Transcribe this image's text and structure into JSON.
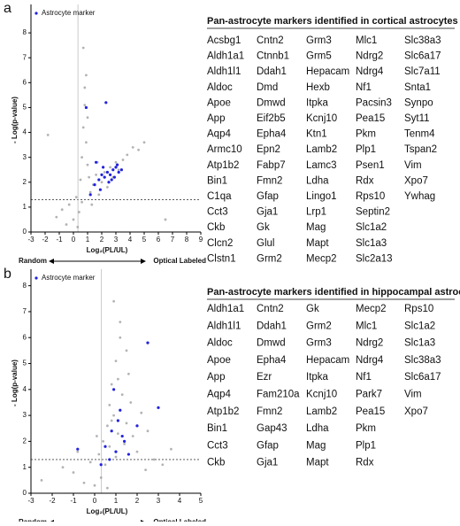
{
  "panel_labels": [
    "a",
    "b"
  ],
  "chart_data": [
    {
      "type": "scatter",
      "xlabel": "Log₂(PL/UL)",
      "ylabel": "- Log(p-value)",
      "x_direction_labels": [
        "Random",
        "Optical Labeled"
      ],
      "xlim": [
        -3,
        9
      ],
      "xticks": [
        -3,
        -2,
        -1,
        0,
        1,
        2,
        3,
        4,
        5,
        6,
        7,
        8,
        9
      ],
      "ylim": [
        0,
        9
      ],
      "yticks": [
        0,
        1,
        2,
        3,
        4,
        5,
        6,
        7,
        8
      ],
      "hline": 1.3,
      "vline": 0.32,
      "legend": "upper left",
      "series": [
        {
          "color": "#9a9a9a",
          "x": [
            -1.2,
            -0.8,
            -0.5,
            -0.3,
            0,
            0.2,
            0.4,
            0.5,
            0.6,
            0.7,
            0.8,
            0.9,
            1.0,
            1.1,
            1.2,
            1.4,
            1.6,
            1.8,
            2.0,
            2.2,
            2.4,
            2.6,
            2.8,
            3.0,
            3.2,
            3.5,
            3.8,
            4.2,
            4.6,
            5.0,
            0.3,
            0.6,
            0.9,
            1.3,
            1.7,
            0.7,
            0.8,
            1.0,
            6.5,
            -1.8
          ],
          "values": [
            0.6,
            0.9,
            0.3,
            1.1,
            0.5,
            1.4,
            0.8,
            2.1,
            3.0,
            4.2,
            5.1,
            3.6,
            2.7,
            2.2,
            1.6,
            1.9,
            2.3,
            1.5,
            2.0,
            2.4,
            1.8,
            2.6,
            2.2,
            2.8,
            2.5,
            2.9,
            3.1,
            3.4,
            3.3,
            3.6,
            0.2,
            1.2,
            6.3,
            1.1,
            2.8,
            7.4,
            5.8,
            4.6,
            0.5,
            3.9
          ]
        },
        {
          "name": "Astrocyte marker",
          "color": "#2222dd",
          "x": [
            1.5,
            1.8,
            2.0,
            2.2,
            2.4,
            2.6,
            2.8,
            3.0,
            3.2,
            2.5,
            1.9,
            2.1,
            2.9,
            3.1,
            1.2,
            0.9,
            1.6,
            2.7,
            3.4,
            2.3
          ],
          "values": [
            1.9,
            2.1,
            2.3,
            2.2,
            2.4,
            2.3,
            2.5,
            2.6,
            2.4,
            2.0,
            1.7,
            2.6,
            2.2,
            2.7,
            1.5,
            5.0,
            2.8,
            2.1,
            2.5,
            5.2
          ]
        }
      ]
    },
    {
      "type": "scatter",
      "xlabel": "Log₂(PL/UL)",
      "ylabel": "- Log(p-value)",
      "x_direction_labels": [
        "Random",
        "Optical Labeled"
      ],
      "xlim": [
        -3,
        5
      ],
      "xticks": [
        -3,
        -2,
        -1,
        0,
        1,
        2,
        3,
        4,
        5
      ],
      "ylim": [
        0,
        8.5
      ],
      "yticks": [
        0,
        1,
        2,
        3,
        4,
        5,
        6,
        7,
        8
      ],
      "hline": 1.3,
      "vline": 0.32,
      "legend": "upper left",
      "series": [
        {
          "color": "#9a9a9a",
          "x": [
            -2.5,
            -1.5,
            -1.0,
            -0.5,
            -0.2,
            0,
            0.2,
            0.4,
            0.5,
            0.6,
            0.7,
            0.8,
            0.9,
            1.0,
            1.1,
            1.2,
            1.3,
            1.4,
            1.5,
            1.6,
            1.8,
            2.0,
            2.2,
            2.5,
            2.8,
            3.2,
            0.3,
            0.6,
            0.9,
            1.2,
            1.5,
            1.7,
            0.8,
            1.0,
            1.1,
            -0.8,
            0.1,
            2.4,
            3.6,
            0.7
          ],
          "values": [
            0.5,
            1.0,
            0.8,
            0.4,
            1.2,
            0.3,
            1.5,
            2.0,
            1.1,
            2.6,
            3.4,
            4.2,
            3.0,
            5.1,
            2.3,
            6.0,
            3.8,
            1.9,
            2.7,
            4.6,
            2.2,
            1.6,
            3.1,
            2.4,
            1.3,
            1.1,
            0.6,
            0.2,
            7.4,
            6.6,
            5.5,
            3.5,
            2.8,
            1.4,
            4.4,
            1.6,
            2.2,
            0.9,
            1.7,
            1.8
          ]
        },
        {
          "name": "Astrocyte marker",
          "color": "#2222dd",
          "x": [
            0.5,
            0.8,
            1.0,
            1.2,
            0.9,
            1.4,
            1.1,
            0.7,
            1.6,
            2.5,
            3.0,
            -0.8,
            0.3,
            1.3,
            2.0
          ],
          "values": [
            1.8,
            2.4,
            1.6,
            3.2,
            4.0,
            2.0,
            2.8,
            1.3,
            1.5,
            5.8,
            3.3,
            1.7,
            1.1,
            2.2,
            2.6
          ]
        }
      ]
    }
  ],
  "tables": [
    {
      "title": "Pan-astrocyte markers identified in cortical astrocytes",
      "columns": [
        [
          "Acsbg1",
          "Aldh1a1",
          "Aldh1l1",
          "Aldoc",
          "Apoe",
          "App",
          "Aqp4",
          "Armc10",
          "Atp1b2",
          "Bin1",
          "C1qa",
          "Cct3",
          "Ckb",
          "Clcn2",
          "Clstn1"
        ],
        [
          "Cntn2",
          "Ctnnb1",
          "Ddah1",
          "Dmd",
          "Dmwd",
          "Eif2b5",
          "Epha4",
          "Epn2",
          "Fabp7",
          "Fmn2",
          "Gfap",
          "Gja1",
          "Gk",
          "Glul",
          "Grm2"
        ],
        [
          "Grm3",
          "Grm5",
          "Hepacam",
          "Hexb",
          "Itpka",
          "Kcnj10",
          "Ktn1",
          "Lamb2",
          "Lamc3",
          "Ldha",
          "Lingo1",
          "Lrp1",
          "Mag",
          "Mapt",
          "Mecp2"
        ],
        [
          "Mlc1",
          "Ndrg2",
          "Ndrg4",
          "Nf1",
          "Pacsin3",
          "Pea15",
          "Pkm",
          "Plp1",
          "Psen1",
          "Rdx",
          "Rps10",
          "Septin2",
          "Slc1a2",
          "Slc1a3",
          "Slc2a13"
        ],
        [
          "Slc38a3",
          "Slc6a17",
          "Slc7a11",
          "Snta1",
          "Synpo",
          "Syt11",
          "Tenm4",
          "Tspan2",
          "Vim",
          "Xpo7",
          "Ywhag"
        ]
      ]
    },
    {
      "title": "Pan-astrocyte markers identified in hippocampal astrocytes",
      "columns": [
        [
          "Aldh1a1",
          "Aldh1l1",
          "Aldoc",
          "Apoe",
          "App",
          "Aqp4",
          "Atp1b2",
          "Bin1",
          "Cct3",
          "Ckb"
        ],
        [
          "Cntn2",
          "Ddah1",
          "Dmwd",
          "Epha4",
          "Ezr",
          "Fam210a",
          "Fmn2",
          "Gap43",
          "Gfap",
          "Gja1"
        ],
        [
          "Gk",
          "Grm2",
          "Grm3",
          "Hepacam",
          "Itpka",
          "Kcnj10",
          "Lamb2",
          "Ldha",
          "Mag",
          "Mapt"
        ],
        [
          "Mecp2",
          "Mlc1",
          "Ndrg2",
          "Ndrg4",
          "Nf1",
          "Park7",
          "Pea15",
          "Pkm",
          "Plp1",
          "Rdx"
        ],
        [
          "Rps10",
          "Slc1a2",
          "Slc1a3",
          "Slc38a3",
          "Slc6a17",
          "Vim",
          "Xpo7"
        ]
      ]
    }
  ]
}
